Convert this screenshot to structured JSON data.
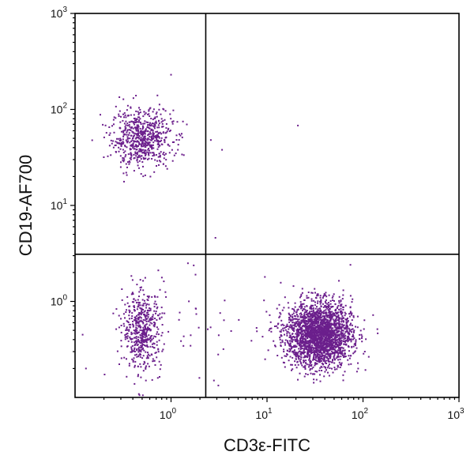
{
  "chart_data": {
    "type": "scatter",
    "title": "",
    "xlabel": "CD3ε-FITC",
    "ylabel": "CD19-AF700",
    "xscale": "log",
    "yscale": "log",
    "xlim": [
      0.1,
      1000
    ],
    "ylim": [
      0.1,
      1000
    ],
    "grid": false,
    "legend": "none",
    "color": "#6b1f8c",
    "x_ticks": [
      {
        "value": 1,
        "base": "10",
        "exp": "0"
      },
      {
        "value": 10,
        "base": "10",
        "exp": "1"
      },
      {
        "value": 100,
        "base": "10",
        "exp": "2"
      },
      {
        "value": 1000,
        "base": "10",
        "exp": "3"
      }
    ],
    "y_ticks": [
      {
        "value": 1,
        "base": "10",
        "exp": "0"
      },
      {
        "value": 10,
        "base": "10",
        "exp": "1"
      },
      {
        "value": 100,
        "base": "10",
        "exp": "2"
      },
      {
        "value": 1000,
        "base": "10",
        "exp": "3"
      }
    ],
    "quadrant_gates": {
      "x": 2.3,
      "y": 3.1
    },
    "populations": [
      {
        "name": "CD3-CD19+ B cells",
        "center_x": 0.5,
        "center_y": 50,
        "spread_x": 0.16,
        "spread_y": 0.15,
        "count": 650
      },
      {
        "name": "CD3-CD19- cells",
        "center_x": 0.5,
        "center_y": 0.5,
        "spread_x": 0.1,
        "spread_y": 0.2,
        "count": 500
      },
      {
        "name": "CD3+CD19- T cells",
        "center_x": 35,
        "center_y": 0.45,
        "spread_x": 0.17,
        "spread_y": 0.17,
        "count": 2400
      },
      {
        "name": "Scattered low events",
        "center_x": 1.5,
        "center_y": 0.6,
        "spread_x": 0.5,
        "spread_y": 0.35,
        "count": 60
      }
    ],
    "outliers": [
      {
        "x": 1.0,
        "y": 230
      },
      {
        "x": 21,
        "y": 68
      },
      {
        "x": 2.6,
        "y": 48
      },
      {
        "x": 3.4,
        "y": 38
      },
      {
        "x": 2.9,
        "y": 4.6
      },
      {
        "x": 9.5,
        "y": 1.8
      },
      {
        "x": 1.5,
        "y": 2.5
      },
      {
        "x": 1.8,
        "y": 1.9
      },
      {
        "x": 3.1,
        "y": 0.28
      },
      {
        "x": 2.8,
        "y": 0.15
      },
      {
        "x": 0.12,
        "y": 0.45
      },
      {
        "x": 0.13,
        "y": 0.2
      }
    ]
  }
}
